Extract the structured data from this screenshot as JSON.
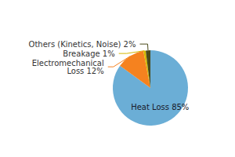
{
  "chart_data": {
    "type": "pie",
    "categories": [
      "Heat Loss 85%",
      "Electromechanical\nLoss 12%",
      "Breakage 1%",
      "Others (Kinetics, Noise) 2%"
    ],
    "values": [
      85,
      12,
      1,
      2
    ],
    "colors": [
      "#6baed6",
      "#f5821f",
      "#d4b800",
      "#4a4a1a"
    ]
  }
}
